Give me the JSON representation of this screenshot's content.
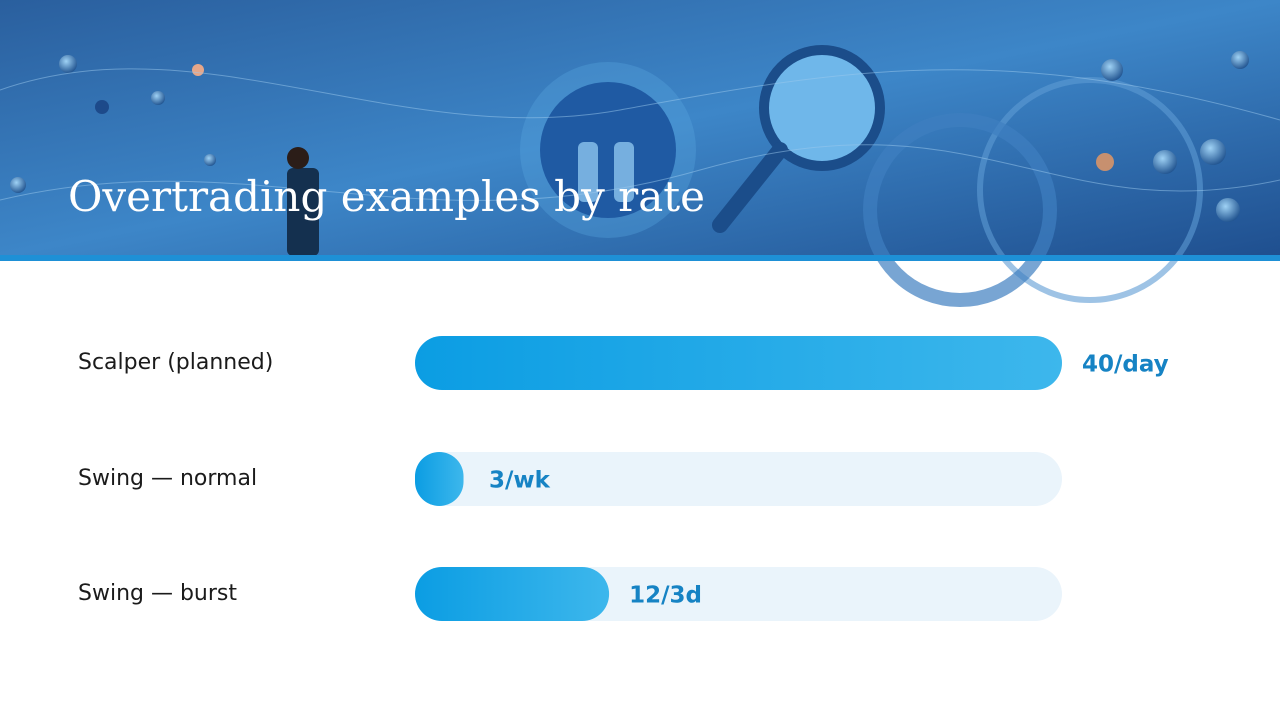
{
  "chart_data": {
    "type": "bar",
    "orientation": "horizontal",
    "title": "Overtrading examples by rate",
    "categories": [
      "Scalper (planned)",
      "Swing — normal",
      "Swing — burst"
    ],
    "values": [
      40,
      3,
      12
    ],
    "value_labels": [
      "40/day",
      "3/wk",
      "12/3d"
    ],
    "xlim": [
      0,
      40
    ],
    "color": "#1ba3e6"
  }
}
